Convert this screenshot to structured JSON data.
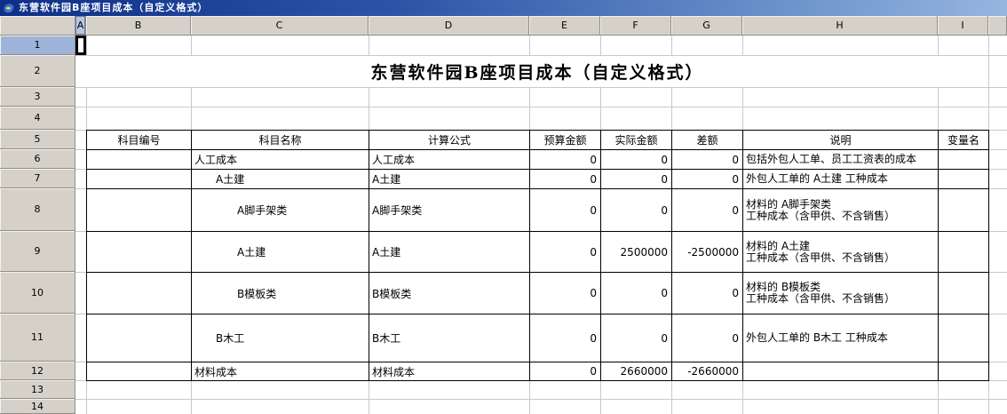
{
  "titlebar": {
    "title": "东营软件园B座项目成本（自定义格式）"
  },
  "sheet": {
    "column_headers": [
      "A",
      "B",
      "C",
      "D",
      "E",
      "F",
      "G",
      "H",
      "I"
    ],
    "row_headers": [
      "1",
      "2",
      "3",
      "4",
      "5",
      "6",
      "7",
      "8",
      "9",
      "10",
      "11",
      "12",
      "13",
      "14"
    ],
    "selected_cell": "A1",
    "title": "东营软件园B座项目成本（自定义格式）"
  },
  "table": {
    "headers": [
      "科目编号",
      "科目名称",
      "计算公式",
      "预算金额",
      "实际金额",
      "差额",
      "说明",
      "变量名"
    ],
    "rows": [
      {
        "code": "",
        "name": "人工成本",
        "indent": 0,
        "formula": "人工成本",
        "budget": "0",
        "actual": "0",
        "diff": "0",
        "note": "包括外包人工单、员工工资表的成本",
        "variable": ""
      },
      {
        "code": "",
        "name": "A土建",
        "indent": 1,
        "formula": "A土建",
        "budget": "0",
        "actual": "0",
        "diff": "0",
        "note": "外包人工单的 A土建 工种成本",
        "variable": ""
      },
      {
        "code": "",
        "name": "A脚手架类",
        "indent": 2,
        "formula": "A脚手架类",
        "budget": "0",
        "actual": "0",
        "diff": "0",
        "note": "材料的 A脚手架类\n工种成本（含甲供、不含销售）",
        "variable": ""
      },
      {
        "code": "",
        "name": "A土建",
        "indent": 2,
        "formula": "A土建",
        "budget": "0",
        "actual": "2500000",
        "diff": "-2500000",
        "note": "材料的 A土建\n工种成本（含甲供、不含销售）",
        "variable": ""
      },
      {
        "code": "",
        "name": "B模板类",
        "indent": 2,
        "formula": "B模板类",
        "budget": "0",
        "actual": "0",
        "diff": "0",
        "note": "材料的 B模板类\n工种成本（含甲供、不含销售）",
        "variable": ""
      },
      {
        "code": "",
        "name": "B木工",
        "indent": 1,
        "formula": "B木工",
        "budget": "0",
        "actual": "0",
        "diff": "0",
        "note": "外包人工单的 B木工 工种成本",
        "variable": ""
      },
      {
        "code": "",
        "name": "材料成本",
        "indent": 0,
        "formula": "材料成本",
        "budget": "0",
        "actual": "2660000",
        "diff": "-2660000",
        "note": "",
        "variable": ""
      }
    ]
  },
  "colors": {
    "titlebar_left": "#0e2f87",
    "titlebar_right": "#97b5e0",
    "header_bg": "#d5d1c9",
    "selected_row_header": "#9fb3da",
    "selected_col_header": "#b9c6de",
    "gridline": "#c9c9c9",
    "table_border": "#000000"
  }
}
